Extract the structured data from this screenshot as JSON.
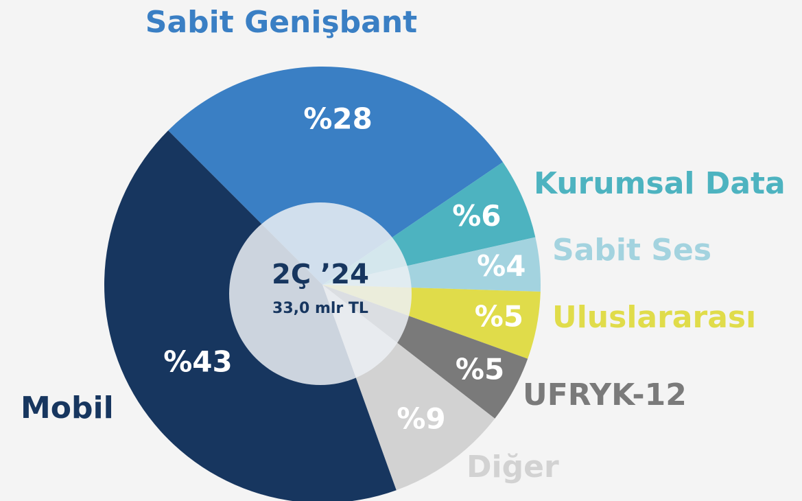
{
  "chart_data": {
    "type": "pie",
    "categories": [
      "Sabit Genişbant",
      "Kurumsal Data",
      "Sabit Ses",
      "Uluslararası",
      "UFRYK-12",
      "Diğer",
      "Mobil"
    ],
    "values": [
      28,
      6,
      4,
      5,
      5,
      9,
      43
    ],
    "value_labels": [
      "%28",
      "%6",
      "%4",
      "%5",
      "%5",
      "%9",
      "%43"
    ],
    "colors": [
      "#3a7fc4",
      "#4db3c0",
      "#a3d3df",
      "#e0dc4a",
      "#7a7a7a",
      "#d2d2d2",
      "#17365f"
    ],
    "center_title": "2Ç ’24",
    "center_subtitle": "33,0 mlr TL"
  }
}
